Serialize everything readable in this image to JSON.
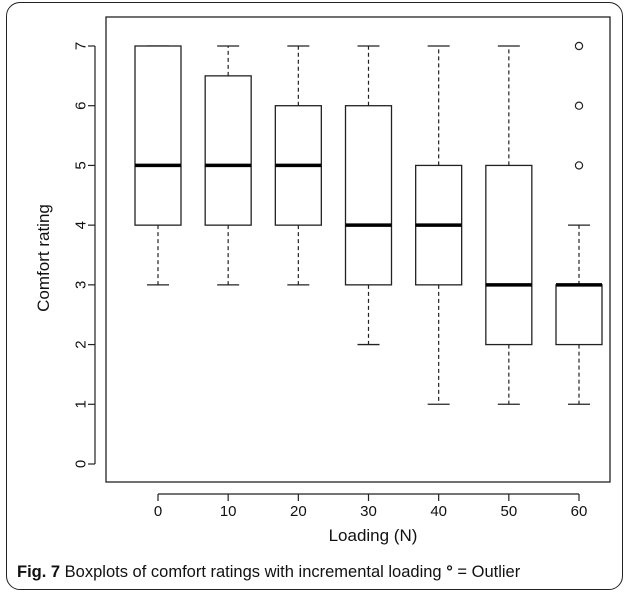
{
  "chart_data": {
    "type": "boxplot",
    "xlabel": "Loading (N)",
    "ylabel": "Comfort rating",
    "categories": [
      "0",
      "10",
      "20",
      "30",
      "40",
      "50",
      "60"
    ],
    "ylim": [
      0,
      7
    ],
    "yticks": [
      "0",
      "1",
      "2",
      "3",
      "4",
      "5",
      "6",
      "7"
    ],
    "grid": false,
    "boxes": [
      {
        "category": "0",
        "min": 3,
        "q1": 4,
        "median": 5,
        "q3": 7,
        "max": 7,
        "outliers": []
      },
      {
        "category": "10",
        "min": 3,
        "q1": 4,
        "median": 5,
        "q3": 6.5,
        "max": 7,
        "outliers": []
      },
      {
        "category": "20",
        "min": 3,
        "q1": 4,
        "median": 5,
        "q3": 6,
        "max": 7,
        "outliers": []
      },
      {
        "category": "30",
        "min": 2,
        "q1": 3,
        "median": 4,
        "q3": 6,
        "max": 7,
        "outliers": []
      },
      {
        "category": "40",
        "min": 1,
        "q1": 3,
        "median": 4,
        "q3": 5,
        "max": 7,
        "outliers": []
      },
      {
        "category": "50",
        "min": 1,
        "q1": 2,
        "median": 3,
        "q3": 5,
        "max": 7,
        "outliers": []
      },
      {
        "category": "60",
        "min": 1,
        "q1": 2,
        "median": 3,
        "q3": 3,
        "max": 4,
        "outliers": [
          5,
          6,
          7
        ]
      }
    ]
  },
  "caption": {
    "label": "Fig. 7",
    "text": " Boxplots of comfort ratings with incremental loading ",
    "outlier_symbol": "°",
    "outlier_text": " = Outlier"
  }
}
